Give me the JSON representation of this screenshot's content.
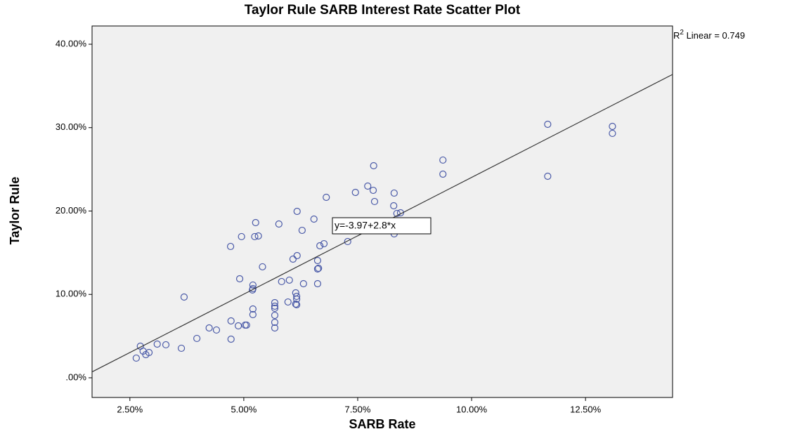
{
  "chart_data": {
    "type": "scatter",
    "title": "Taylor Rule SARB Interest Rate Scatter Plot",
    "x_label": "SARB Rate",
    "y_label": "Taylor Rule",
    "color": "#4a5aa8",
    "xlim": [
      1.67,
      14.41
    ],
    "ylim": [
      -2.36,
      42.19
    ],
    "xticks": [
      {
        "value": 2.5,
        "label": "2.50%"
      },
      {
        "value": 5,
        "label": "5.00%"
      },
      {
        "value": 7.5,
        "label": "7.50%"
      },
      {
        "value": 10,
        "label": "10.00%"
      },
      {
        "value": 12.5,
        "label": "12.50%"
      }
    ],
    "yticks": [
      {
        "value": 0,
        "label": ".00%"
      },
      {
        "value": 10,
        "label": "10.00%"
      },
      {
        "value": 20,
        "label": "20.00%"
      },
      {
        "value": 30,
        "label": "30.00%"
      },
      {
        "value": 40,
        "label": "40.00%"
      }
    ],
    "fit": {
      "intercept": -3.97,
      "slope": 2.8,
      "label": "y=-3.97+2.8*x"
    },
    "r2": {
      "prefix": "R",
      "superscript": "2",
      "text": " Linear = 0.749"
    },
    "x": [
      2.64,
      2.73,
      2.79,
      2.85,
      2.92,
      3.1,
      3.29,
      3.63,
      3.69,
      3.97,
      4.24,
      4.4,
      4.72,
      4.72,
      4.71,
      4.91,
      4.88,
      4.95,
      5.03,
      5.06,
      5.2,
      5.2,
      5.2,
      5.2,
      5.19,
      5.24,
      5.26,
      5.32,
      5.41,
      5.68,
      5.68,
      5.68,
      5.68,
      5.68,
      5.68,
      5.77,
      5.83,
      5.97,
      6.0,
      6.08,
      6.14,
      6.16,
      6.16,
      6.16,
      6.14,
      6.17,
      6.17,
      6.28,
      6.31,
      6.54,
      6.62,
      6.64,
      6.62,
      6.62,
      6.67,
      6.76,
      6.81,
      7.28,
      7.45,
      7.72,
      7.84,
      7.87,
      7.85,
      8.3,
      8.29,
      8.3,
      8.36,
      8.44,
      9.37,
      9.37,
      11.67,
      11.67,
      13.09,
      13.09
    ],
    "values": [
      2.36,
      3.79,
      3.2,
      2.78,
      3.03,
      4.04,
      3.96,
      3.54,
      9.68,
      4.72,
      5.98,
      5.73,
      4.63,
      6.82,
      15.75,
      11.87,
      6.23,
      16.93,
      6.32,
      6.32,
      7.58,
      8.25,
      10.7,
      11.12,
      10.53,
      16.93,
      18.61,
      17.01,
      13.31,
      5.98,
      6.65,
      7.49,
      8.34,
      9.01,
      8.59,
      18.44,
      11.54,
      9.09,
      11.71,
      14.23,
      8.84,
      8.76,
      9.43,
      9.77,
      10.19,
      14.65,
      19.96,
      17.68,
      11.28,
      19.03,
      11.28,
      13.14,
      14.06,
      13.05,
      15.83,
      16.08,
      21.64,
      16.34,
      22.23,
      22.99,
      22.48,
      21.14,
      25.43,
      22.15,
      20.63,
      17.26,
      19.71,
      19.79,
      26.11,
      24.42,
      30.4,
      24.17,
      30.15,
      29.31
    ]
  }
}
